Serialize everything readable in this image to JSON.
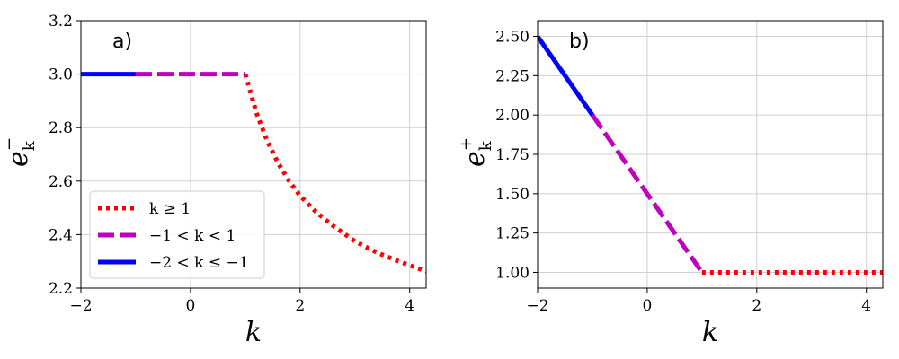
{
  "chart_data": [
    {
      "type": "line",
      "panel_label": "a)",
      "xlabel": "k",
      "ylabel_base": "e",
      "ylabel_sub": "k",
      "ylabel_sup": "−",
      "xlim": [
        -2,
        4.3
      ],
      "ylim": [
        2.2,
        3.2
      ],
      "xticks": [
        -2,
        0,
        2,
        4
      ],
      "xtick_labels": [
        "−2",
        "0",
        "2",
        "4"
      ],
      "yticks": [
        2.2,
        2.4,
        2.6,
        2.8,
        3.0,
        3.2
      ],
      "ytick_labels": [
        "2.2",
        "2.4",
        "2.6",
        "2.8",
        "3.0",
        "3.2"
      ],
      "grid": true,
      "legend_position": "lower-left",
      "series": [
        {
          "name": "k ≥ 1",
          "color": "#ff0000",
          "style": "dotted",
          "x": [
            1.0,
            1.2,
            1.4,
            1.6,
            1.8,
            2.0,
            2.3,
            2.6,
            3.0,
            3.4,
            3.8,
            4.3
          ],
          "y": [
            3.0,
            2.857,
            2.75,
            2.667,
            2.6,
            2.545,
            2.483,
            2.433,
            2.375,
            2.333,
            2.3,
            2.263
          ]
        },
        {
          "name": "−1 < k < 1",
          "color": "#bf00bf",
          "style": "dashed",
          "x": [
            -1.0,
            1.0
          ],
          "y": [
            3.0,
            3.0
          ]
        },
        {
          "name": "−2 < k ≤ −1",
          "color": "#0000ff",
          "style": "solid",
          "x": [
            -2.0,
            -1.0
          ],
          "y": [
            3.0,
            3.0
          ]
        }
      ]
    },
    {
      "type": "line",
      "panel_label": "b)",
      "xlabel": "k",
      "ylabel_base": "e",
      "ylabel_sub": "k",
      "ylabel_sup": "+",
      "xlim": [
        -2,
        4.3
      ],
      "ylim": [
        0.9,
        2.6
      ],
      "xticks": [
        -2,
        0,
        2,
        4
      ],
      "xtick_labels": [
        "−2",
        "0",
        "2",
        "4"
      ],
      "yticks": [
        1.0,
        1.25,
        1.5,
        1.75,
        2.0,
        2.25,
        2.5
      ],
      "ytick_labels": [
        "1.00",
        "1.25",
        "1.50",
        "1.75",
        "2.00",
        "2.25",
        "2.50"
      ],
      "grid": true,
      "series": [
        {
          "name": "k ≥ 1",
          "color": "#ff0000",
          "style": "dotted",
          "x": [
            1.0,
            4.3
          ],
          "y": [
            1.0,
            1.0
          ]
        },
        {
          "name": "−1 < k < 1",
          "color": "#bf00bf",
          "style": "dashed",
          "x": [
            -1.0,
            1.0
          ],
          "y": [
            2.0,
            1.0
          ]
        },
        {
          "name": "−2 < k ≤ −1",
          "color": "#0000ff",
          "style": "solid",
          "x": [
            -2.0,
            -1.0
          ],
          "y": [
            2.5,
            2.0
          ]
        }
      ]
    }
  ]
}
